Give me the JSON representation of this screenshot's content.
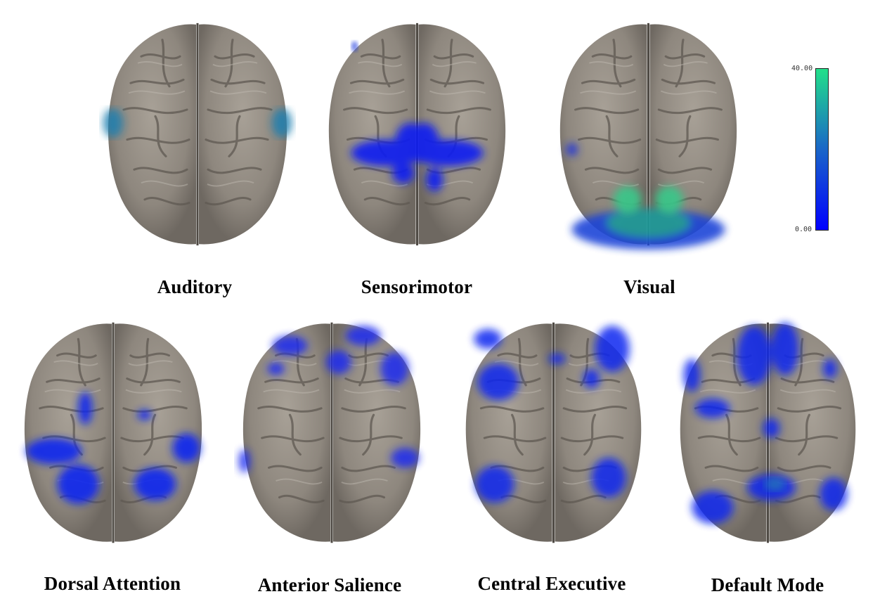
{
  "figure": {
    "panels": [
      {
        "label": "Auditory",
        "activation": "bilateral lateral temporal (auditory cortex)"
      },
      {
        "label": "Sensorimotor",
        "activation": "central pre/postcentral gyri"
      },
      {
        "label": "Visual",
        "activation": "occipital cortex"
      },
      {
        "label": "Dorsal Attention",
        "activation": "bilateral parietal"
      },
      {
        "label": "Anterior Salience",
        "activation": "frontal / anterior"
      },
      {
        "label": "Central Executive",
        "activation": "lateral frontal and parietal"
      },
      {
        "label": "Default Mode",
        "activation": "medial frontal and posterior"
      }
    ],
    "colorbar": {
      "max_label": "40.00",
      "min_label": "0.00",
      "colors": [
        "#0000ff",
        "#1a66c8",
        "#22e08a"
      ]
    }
  }
}
